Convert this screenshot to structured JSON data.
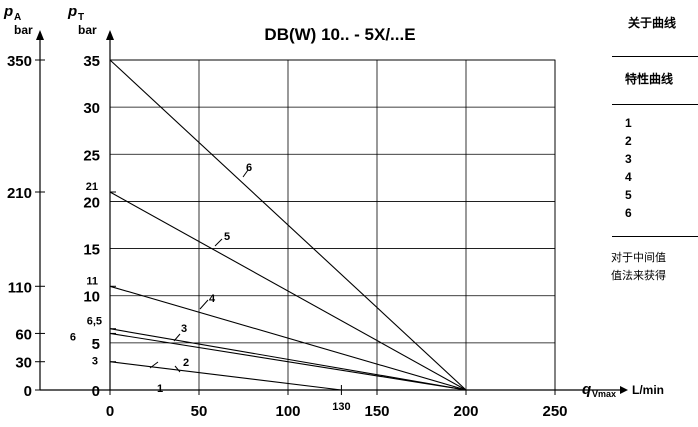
{
  "chart_data": {
    "type": "line",
    "title": "DB(W) 10.. - 5X/...E",
    "x": {
      "label": "q",
      "label_sub": "Vmax",
      "unit": "L/min",
      "ticks": [
        "0",
        "50",
        "100",
        "150",
        "200",
        "250"
      ],
      "range": [
        0,
        250
      ],
      "extra_tick": "130"
    },
    "y_left": {
      "label": "p",
      "label_sub": "A",
      "unit": "bar",
      "ticks": [
        "0",
        "30",
        "60",
        "110",
        "210",
        "350"
      ],
      "values": [
        0,
        30,
        60,
        110,
        210,
        350
      ]
    },
    "y_right": {
      "label": "p",
      "label_sub": "T",
      "unit": "bar",
      "ticks": [
        "0",
        "5",
        "10",
        "15",
        "20",
        "25",
        "30",
        "35"
      ],
      "range": [
        0,
        35
      ]
    },
    "intercept_labels": [
      {
        "text": "3",
        "y": 3
      },
      {
        "text": "6",
        "y": 6
      },
      {
        "text": "6,5",
        "y": 6.5
      },
      {
        "text": "11",
        "y": 11
      },
      {
        "text": "21",
        "y": 21
      }
    ],
    "grid": true,
    "series": [
      {
        "name": "1",
        "x": [
          0,
          130
        ],
        "y": [
          3,
          0
        ]
      },
      {
        "name": "2",
        "x": [
          0,
          200
        ],
        "y": [
          6,
          0
        ]
      },
      {
        "name": "3",
        "x": [
          0,
          200
        ],
        "y": [
          6.5,
          0
        ]
      },
      {
        "name": "4",
        "x": [
          0,
          200
        ],
        "y": [
          11,
          0
        ]
      },
      {
        "name": "5",
        "x": [
          0,
          200
        ],
        "y": [
          21,
          0
        ]
      },
      {
        "name": "6",
        "x": [
          0,
          200
        ],
        "y": [
          35,
          0
        ]
      }
    ]
  },
  "side_table": {
    "title": "关于曲线",
    "header": "特性曲线",
    "rows": [
      "1",
      "2",
      "3",
      "4",
      "5",
      "6"
    ],
    "note_lines": [
      "对于中间值",
      "值法来获得"
    ]
  }
}
